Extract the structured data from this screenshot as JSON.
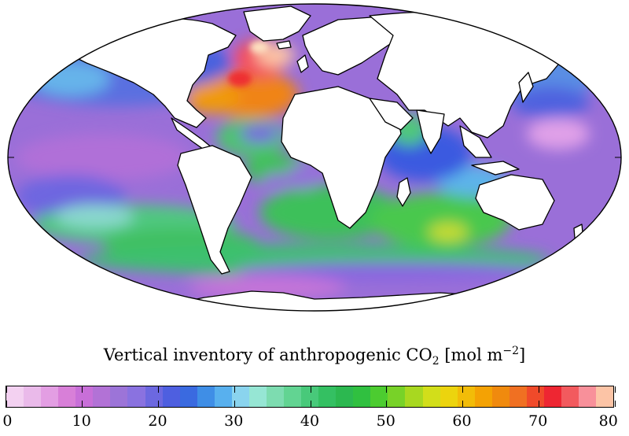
{
  "colorbar": {
    "title_main": "Vertical inventory of anthropogenic CO",
    "title_sub": "2",
    "title_unit_open": " [mol m",
    "title_sup": "−2",
    "title_unit_close": "]",
    "min": 0,
    "max": 80,
    "ticks": [
      "0",
      "10",
      "20",
      "30",
      "40",
      "50",
      "60",
      "70",
      "80"
    ],
    "colors": [
      "#f3d1f1",
      "#eabaea",
      "#e39ee3",
      "#d87fd8",
      "#c86fd8",
      "#b272d6",
      "#9c74d8",
      "#8a72e0",
      "#6c68e0",
      "#4e5fe0",
      "#3a6ae0",
      "#3f8ee6",
      "#58b0ee",
      "#8ad4ee",
      "#96e6d4",
      "#7ddcb0",
      "#62d492",
      "#48c97a",
      "#34c062",
      "#2cb850",
      "#30c040",
      "#4ccc30",
      "#78d228",
      "#a8d820",
      "#d2de1a",
      "#ecd40e",
      "#f2bc08",
      "#f4a204",
      "#f08a0e",
      "#f07022",
      "#f04a2a",
      "#ee2632",
      "#f25a5e",
      "#f8909a",
      "#fcc4a6"
    ]
  },
  "map_colors": {
    "ocean_base": "#9a6fd8",
    "land": "#ffffff",
    "coast": "#000000"
  }
}
